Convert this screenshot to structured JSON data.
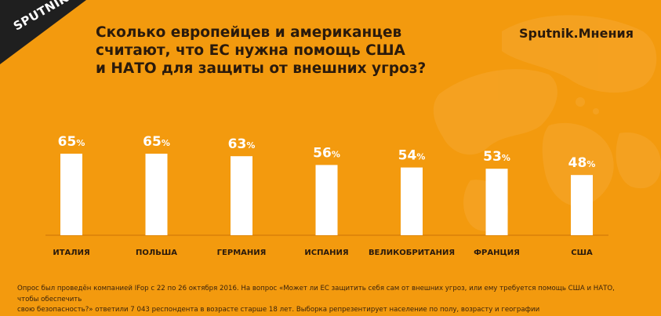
{
  "logo": {
    "text": "SPUTNIK"
  },
  "title_lines": [
    "Сколько европейцев и американцев",
    "считают, что ЕС нужна помощь США",
    "и НАТО для защиты от внешних угроз?"
  ],
  "brand": {
    "text": "Sputnik.Мнения"
  },
  "footnote": {
    "line1": "Опрос был проведён компанией IFop с 22 по 26 октября 2016. На вопрос «Может ли ЕС защитить себя сам от внешних угроз, или ему требуется помощь США и НАТО, чтобы обеспечить",
    "line2": "свою безопасность?» ответили 7 043 респондента в возрасте старше 18 лет. Выборка репрезентирует население по полу, возрасту и географии"
  },
  "colors": {
    "background": "#f39a0e",
    "bar": "#ffffff",
    "text": "#2a1a0c",
    "value_text": "#ffffff",
    "logo_bg": "#1f1f1f"
  },
  "chart_data": {
    "type": "bar",
    "categories": [
      "ИТАЛИЯ",
      "ПОЛЬША",
      "ГЕРМАНИЯ",
      "ИСПАНИЯ",
      "ВЕЛИКОБРИТАНИЯ",
      "ФРАНЦИЯ",
      "США"
    ],
    "values": [
      65,
      65,
      63,
      56,
      54,
      53,
      48
    ],
    "value_suffix": "%",
    "title": "",
    "xlabel": "",
    "ylabel": "",
    "ylim": [
      0,
      100
    ],
    "grid": false,
    "legend": "none"
  }
}
